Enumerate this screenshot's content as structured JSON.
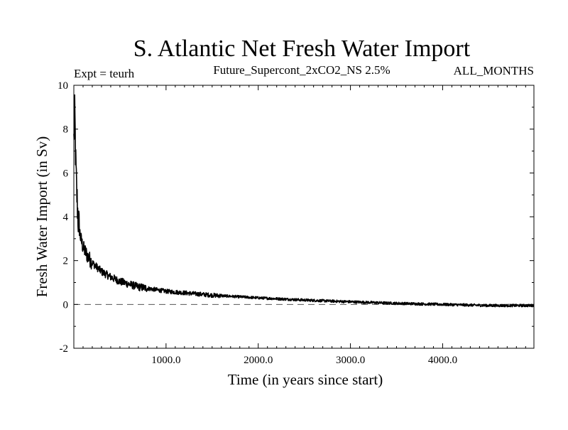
{
  "chart_data": {
    "type": "line",
    "title": "S. Atlantic Net Fresh Water Import",
    "subtitle_left": "Expt = teurh",
    "subtitle_center": "Future_Supercont_2xCO2_NS 2.5%",
    "subtitle_right": "ALL_MONTHS",
    "xlabel": "Time (in years since start)",
    "ylabel": "Fresh Water Import (in Sv)",
    "xlim": [
      0,
      4990
    ],
    "ylim": [
      -2,
      10
    ],
    "x_ticks": [
      1000,
      2000,
      3000,
      4000
    ],
    "x_tick_labels": [
      "1000.0",
      "2000.0",
      "3000.0",
      "4000.0"
    ],
    "y_ticks": [
      -2,
      0,
      2,
      4,
      6,
      8,
      10
    ],
    "y_tick_labels": [
      "-2",
      "0",
      "2",
      "4",
      "6",
      "8",
      "10"
    ],
    "reference_line": {
      "y": 0,
      "style": "dashed"
    },
    "series": [
      {
        "color": "#000000",
        "x": [
          0,
          10,
          20,
          30,
          40,
          50,
          75,
          100,
          150,
          200,
          300,
          400,
          500,
          700,
          1000,
          1500,
          2000,
          2500,
          3000,
          3500,
          4000,
          4500,
          4990
        ],
        "values": [
          7.5,
          8.8,
          6.5,
          5.2,
          4.4,
          3.7,
          3.0,
          2.6,
          2.2,
          1.9,
          1.5,
          1.25,
          1.05,
          0.8,
          0.6,
          0.42,
          0.3,
          0.2,
          0.12,
          0.05,
          0.0,
          -0.05,
          -0.05
        ]
      }
    ]
  }
}
